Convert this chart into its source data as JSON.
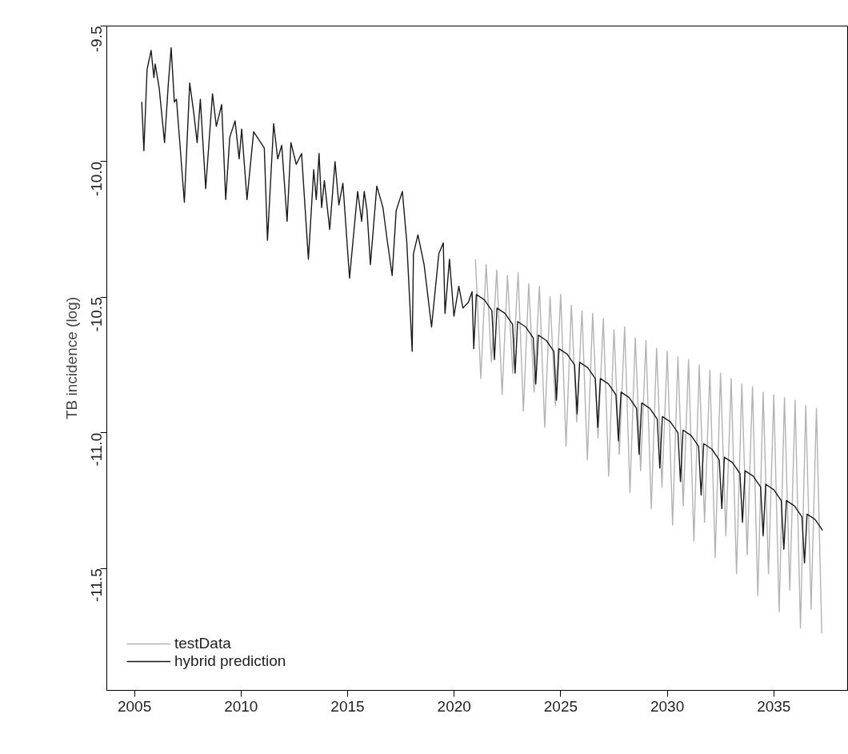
{
  "chart_data": {
    "type": "line",
    "ylabel": "TB incidence (log)",
    "xlim": [
      2003.7,
      2038.5
    ],
    "xticks": [
      2005,
      2010,
      2015,
      2020,
      2025,
      2030,
      2035
    ],
    "ylim": [
      -11.95,
      -9.5
    ],
    "yticks": [
      {
        "value": -9.5,
        "label": "-9.5"
      },
      {
        "value": -10,
        "label": "-10.0"
      },
      {
        "value": -10.5,
        "label": "-10.5"
      },
      {
        "value": -11,
        "label": "-11.0"
      },
      {
        "value": -11.5,
        "label": "-11.5"
      }
    ],
    "grid": false,
    "legend": "bottom left",
    "marker": "none",
    "line_style": "solid",
    "series": [
      {
        "name": "testData",
        "color": "#b3b3b3",
        "x": [
          2021.0,
          2021.25,
          2021.5,
          2021.75,
          2022.0,
          2022.25,
          2022.5,
          2022.75,
          2023.0,
          2023.25,
          2023.5,
          2023.75,
          2024.0,
          2024.25,
          2024.5,
          2024.75,
          2025.0,
          2025.25,
          2025.5,
          2025.75,
          2026.0,
          2026.25,
          2026.5,
          2026.75,
          2027.0,
          2027.25,
          2027.5,
          2027.75,
          2028.0,
          2028.25,
          2028.5,
          2028.75,
          2029.0,
          2029.25,
          2029.5,
          2029.75,
          2030.0,
          2030.25,
          2030.5,
          2030.75,
          2031.0,
          2031.25,
          2031.5,
          2031.75,
          2032.0,
          2032.25,
          2032.5,
          2032.75,
          2033.0,
          2033.25,
          2033.5,
          2033.75,
          2034.0,
          2034.25,
          2034.5,
          2034.75,
          2035.0,
          2035.25,
          2035.5,
          2035.75,
          2036.0,
          2036.25,
          2036.5,
          2036.75,
          2037.0,
          2037.25
        ],
        "values": [
          -10.36,
          -10.8,
          -10.38,
          -10.74,
          -10.4,
          -10.86,
          -10.42,
          -10.78,
          -10.41,
          -10.92,
          -10.45,
          -10.85,
          -10.46,
          -10.98,
          -10.5,
          -10.9,
          -10.49,
          -11.05,
          -10.53,
          -10.96,
          -10.55,
          -11.1,
          -10.56,
          -11.02,
          -10.58,
          -11.16,
          -10.62,
          -11.08,
          -10.61,
          -11.22,
          -10.65,
          -11.14,
          -10.66,
          -11.28,
          -10.69,
          -11.2,
          -10.7,
          -11.34,
          -10.72,
          -11.27,
          -10.73,
          -11.4,
          -10.75,
          -11.33,
          -10.77,
          -11.46,
          -10.78,
          -11.38,
          -10.8,
          -11.52,
          -10.82,
          -11.45,
          -10.83,
          -11.6,
          -10.85,
          -11.52,
          -10.86,
          -11.66,
          -10.87,
          -11.58,
          -10.88,
          -11.72,
          -10.9,
          -11.65,
          -10.91,
          -11.74
        ]
      },
      {
        "name": "hybrid prediction",
        "color": "#1a1a1a",
        "x": [
          2005.34,
          2005.44,
          2005.59,
          2005.78,
          2005.91,
          2005.97,
          2006.16,
          2006.41,
          2006.59,
          2006.72,
          2006.87,
          2006.97,
          2007.34,
          2007.59,
          2007.78,
          2007.94,
          2008.09,
          2008.34,
          2008.66,
          2008.84,
          2009.09,
          2009.28,
          2009.47,
          2009.72,
          2009.91,
          2010.03,
          2010.28,
          2010.59,
          2011.09,
          2011.24,
          2011.53,
          2011.72,
          2011.91,
          2012.16,
          2012.34,
          2012.59,
          2012.84,
          2013.16,
          2013.41,
          2013.53,
          2013.66,
          2013.78,
          2013.91,
          2014.16,
          2014.41,
          2014.59,
          2014.78,
          2015.09,
          2015.47,
          2015.66,
          2015.78,
          2015.91,
          2016.07,
          2016.37,
          2016.66,
          2016.84,
          2017.09,
          2017.28,
          2017.57,
          2017.78,
          2018.03,
          2018.09,
          2018.3,
          2018.59,
          2018.94,
          2019.28,
          2019.49,
          2019.57,
          2019.78,
          2019.99,
          2020.22,
          2020.41,
          2020.66,
          2020.84,
          2020.92,
          2021.04,
          2021.42,
          2021.77,
          2021.89,
          2022.01,
          2022.39,
          2022.74,
          2022.86,
          2022.98,
          2023.36,
          2023.71,
          2023.83,
          2023.95,
          2024.33,
          2024.68,
          2024.8,
          2024.92,
          2025.3,
          2025.65,
          2025.77,
          2025.89,
          2026.27,
          2026.62,
          2026.74,
          2026.86,
          2027.24,
          2027.59,
          2027.71,
          2027.83,
          2028.21,
          2028.56,
          2028.68,
          2028.8,
          2029.18,
          2029.53,
          2029.65,
          2029.77,
          2030.15,
          2030.5,
          2030.62,
          2030.74,
          2031.12,
          2031.47,
          2031.59,
          2031.71,
          2032.09,
          2032.44,
          2032.56,
          2032.68,
          2033.06,
          2033.41,
          2033.53,
          2033.65,
          2034.03,
          2034.38,
          2034.5,
          2034.62,
          2035.0,
          2035.35,
          2035.47,
          2035.59,
          2035.97,
          2036.32,
          2036.44,
          2036.56,
          2036.94,
          2037.29
        ],
        "values": [
          -9.78,
          -9.96,
          -9.66,
          -9.59,
          -9.69,
          -9.64,
          -9.73,
          -9.93,
          -9.71,
          -9.58,
          -9.78,
          -9.77,
          -10.15,
          -9.71,
          -9.82,
          -9.93,
          -9.77,
          -10.1,
          -9.75,
          -9.87,
          -9.79,
          -10.14,
          -9.91,
          -9.85,
          -9.99,
          -9.88,
          -10.14,
          -9.89,
          -9.95,
          -10.29,
          -9.86,
          -9.99,
          -9.94,
          -10.22,
          -9.93,
          -10.01,
          -9.97,
          -10.36,
          -10.03,
          -10.14,
          -9.97,
          -10.17,
          -10.07,
          -10.25,
          -10.0,
          -10.16,
          -10.08,
          -10.43,
          -10.11,
          -10.22,
          -10.11,
          -10.18,
          -10.38,
          -10.09,
          -10.17,
          -10.28,
          -10.42,
          -10.18,
          -10.11,
          -10.3,
          -10.7,
          -10.34,
          -10.27,
          -10.38,
          -10.61,
          -10.34,
          -10.3,
          -10.56,
          -10.36,
          -10.57,
          -10.46,
          -10.54,
          -10.52,
          -10.48,
          -10.69,
          -10.49,
          -10.51,
          -10.55,
          -10.73,
          -10.54,
          -10.56,
          -10.6,
          -10.78,
          -10.59,
          -10.61,
          -10.65,
          -10.82,
          -10.64,
          -10.66,
          -10.7,
          -10.88,
          -10.69,
          -10.71,
          -10.75,
          -10.93,
          -10.74,
          -10.76,
          -10.8,
          -10.98,
          -10.8,
          -10.82,
          -10.86,
          -11.03,
          -10.85,
          -10.87,
          -10.91,
          -11.08,
          -10.89,
          -10.91,
          -10.95,
          -11.13,
          -10.94,
          -10.96,
          -11.0,
          -11.18,
          -10.99,
          -11.01,
          -11.05,
          -11.23,
          -11.04,
          -11.06,
          -11.1,
          -11.28,
          -11.09,
          -11.11,
          -11.15,
          -11.33,
          -11.14,
          -11.16,
          -11.2,
          -11.38,
          -11.19,
          -11.21,
          -11.25,
          -11.43,
          -11.25,
          -11.27,
          -11.31,
          -11.48,
          -11.3,
          -11.32,
          -11.36
        ]
      }
    ]
  }
}
